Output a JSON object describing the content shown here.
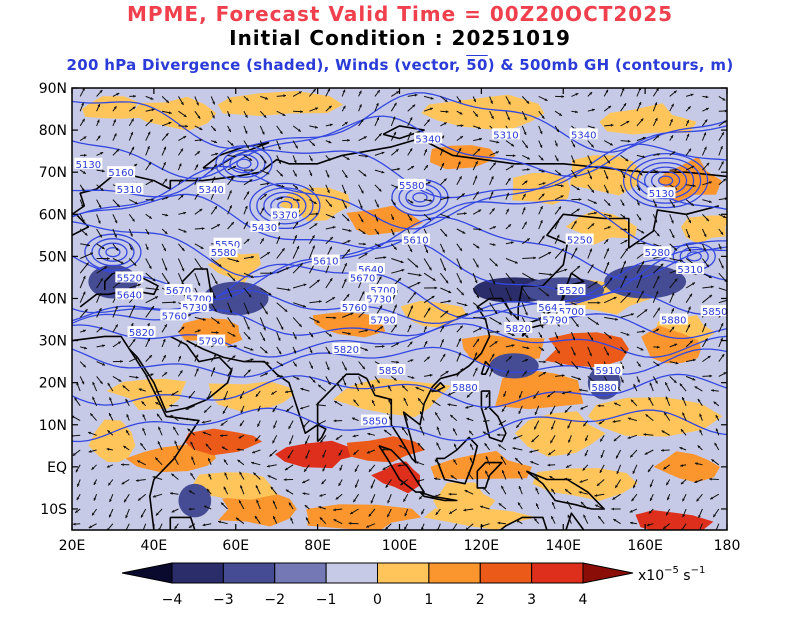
{
  "title": {
    "line1": "MPME, Forecast Valid Time = 00Z20OCT2025",
    "line2": "Initial Condition : 20251019",
    "line3_pre": "200 hPa Divergence (shaded), Winds (vector,",
    "line3_ref": "50",
    "line3_post": ") & 500mb GH (contours, m)"
  },
  "map": {
    "lon_range": [
      20,
      180
    ],
    "lat_range": [
      -15,
      90
    ],
    "lon_ticks": [
      "20E",
      "40E",
      "60E",
      "80E",
      "100E",
      "120E",
      "140E",
      "160E",
      "180"
    ],
    "lat_ticks": [
      "90N",
      "80N",
      "70N",
      "60N",
      "50N",
      "40N",
      "30N",
      "20N",
      "10N",
      "EQ",
      "10S"
    ]
  },
  "contour_labels": [
    {
      "text": "5310",
      "lon": 126,
      "lat": 79
    },
    {
      "text": "5340",
      "lon": 107,
      "lat": 78
    },
    {
      "text": "5340",
      "lon": 145,
      "lat": 79
    },
    {
      "text": "5130",
      "lon": 24,
      "lat": 72
    },
    {
      "text": "5160",
      "lon": 32,
      "lat": 70
    },
    {
      "text": "5310",
      "lon": 34,
      "lat": 66
    },
    {
      "text": "5340",
      "lon": 54,
      "lat": 66
    },
    {
      "text": "5580",
      "lon": 103,
      "lat": 67
    },
    {
      "text": "5130",
      "lon": 164,
      "lat": 65
    },
    {
      "text": "5370",
      "lon": 72,
      "lat": 60
    },
    {
      "text": "5430",
      "lon": 67,
      "lat": 57
    },
    {
      "text": "5610",
      "lon": 104,
      "lat": 54
    },
    {
      "text": "5250",
      "lon": 144,
      "lat": 54
    },
    {
      "text": "5550",
      "lon": 58,
      "lat": 53
    },
    {
      "text": "5580",
      "lon": 57,
      "lat": 51
    },
    {
      "text": "5280",
      "lon": 163,
      "lat": 51
    },
    {
      "text": "5610",
      "lon": 82,
      "lat": 49
    },
    {
      "text": "5310",
      "lon": 171,
      "lat": 47
    },
    {
      "text": "5640",
      "lon": 93,
      "lat": 47
    },
    {
      "text": "5670",
      "lon": 91,
      "lat": 45
    },
    {
      "text": "5520",
      "lon": 34,
      "lat": 45
    },
    {
      "text": "5700",
      "lon": 96,
      "lat": 42
    },
    {
      "text": "5520",
      "lon": 142,
      "lat": 42
    },
    {
      "text": "5640",
      "lon": 34,
      "lat": 41
    },
    {
      "text": "5670",
      "lon": 46,
      "lat": 42
    },
    {
      "text": "5730",
      "lon": 95,
      "lat": 40
    },
    {
      "text": "5700",
      "lon": 51,
      "lat": 40
    },
    {
      "text": "5730",
      "lon": 50,
      "lat": 38
    },
    {
      "text": "5760",
      "lon": 89,
      "lat": 38
    },
    {
      "text": "5640",
      "lon": 137,
      "lat": 38
    },
    {
      "text": "5700",
      "lon": 142,
      "lat": 37
    },
    {
      "text": "5850",
      "lon": 177,
      "lat": 37
    },
    {
      "text": "5760",
      "lon": 45,
      "lat": 36
    },
    {
      "text": "5790",
      "lon": 96,
      "lat": 35
    },
    {
      "text": "5790",
      "lon": 138,
      "lat": 35
    },
    {
      "text": "5880",
      "lon": 167,
      "lat": 35
    },
    {
      "text": "5820",
      "lon": 37,
      "lat": 32
    },
    {
      "text": "5790",
      "lon": 54,
      "lat": 30
    },
    {
      "text": "5820",
      "lon": 129,
      "lat": 33
    },
    {
      "text": "5820",
      "lon": 87,
      "lat": 28
    },
    {
      "text": "5850",
      "lon": 98,
      "lat": 23
    },
    {
      "text": "5910",
      "lon": 151,
      "lat": 23
    },
    {
      "text": "5880",
      "lon": 116,
      "lat": 19
    },
    {
      "text": "5880",
      "lon": 150,
      "lat": 19
    },
    {
      "text": "5850",
      "lon": 94,
      "lat": 11
    }
  ],
  "colorbar": {
    "ticks": [
      "−4",
      "−3",
      "−2",
      "−1",
      "0",
      "1",
      "2",
      "3",
      "4"
    ],
    "unit_prefix": "x10",
    "unit_exp": "−5",
    "unit_suffix": " s",
    "unit_exp2": "−1",
    "colors": [
      "#0a0a2e",
      "#2a2d6a",
      "#454c94",
      "#7479b6",
      "#c7cae6",
      "#ffc55a",
      "#fb952e",
      "#ec5a1a",
      "#dd2f1b",
      "#8a0d08"
    ]
  },
  "colors": {
    "shade_neg1": "#c7cae6",
    "shade_pos1": "#ffc55a",
    "contour": "#3448e0",
    "coast": "#000000"
  }
}
